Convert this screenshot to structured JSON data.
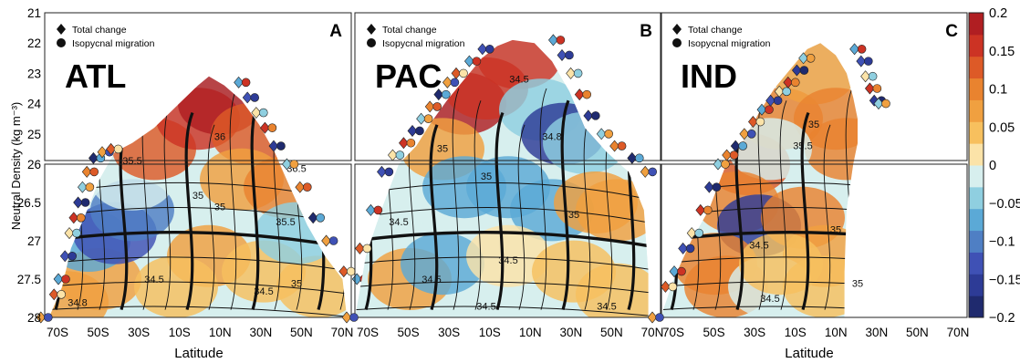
{
  "chart_data": {
    "type": "heatmap",
    "ylabel": "Neutral Density (kg m⁻³)",
    "xlabel": "Latitude",
    "x_ticks": [
      "70S",
      "50S",
      "30S",
      "10S",
      "10N",
      "30N",
      "50N",
      "70N"
    ],
    "y_ticks": [
      "21",
      "22",
      "23",
      "24",
      "25",
      "26",
      "26.5",
      "27",
      "27.5",
      "28"
    ],
    "xlim": [
      -70,
      70
    ],
    "y_upper_range": [
      21,
      26
    ],
    "y_lower_range": [
      26,
      28
    ],
    "legend": {
      "diamond_label": "Total change",
      "circle_label": "Isopycnal migration"
    },
    "colorbar": {
      "ticks": [
        "0.2",
        "0.15",
        "0.1",
        "0.05",
        "0",
        "−0.05",
        "−0.1",
        "−0.15",
        "−0.2"
      ],
      "range": [
        -0.2,
        0.2
      ],
      "colors": [
        "#1f2a6e",
        "#2d3b96",
        "#3f51b5",
        "#4f7fc4",
        "#5ba9d6",
        "#8fcfe0",
        "#d7efee",
        "#fbe3a8",
        "#f7c05e",
        "#f0a040",
        "#e9832f",
        "#dd5a27",
        "#cc3324",
        "#b01e22"
      ]
    },
    "panels": [
      {
        "letter": "A",
        "basin": "ATL",
        "salinity_labels": [
          "35.5",
          "36",
          "35",
          "36.5",
          "35",
          "35.5",
          "34.5",
          "34.5",
          "35",
          "34.8"
        ],
        "field": [
          {
            "lat": -60,
            "d": 27.8,
            "v": 0.06
          },
          {
            "lat": -45,
            "d": 27.5,
            "v": 0.08
          },
          {
            "lat": -50,
            "d": 27.0,
            "v": -0.06
          },
          {
            "lat": -38,
            "d": 26.9,
            "v": -0.13
          },
          {
            "lat": -30,
            "d": 26.6,
            "v": -0.09
          },
          {
            "lat": -30,
            "d": 26.2,
            "v": -0.02
          },
          {
            "lat": -20,
            "d": 25.5,
            "v": 0.12
          },
          {
            "lat": 0,
            "d": 24.5,
            "v": 0.17
          },
          {
            "lat": 10,
            "d": 24.0,
            "v": 0.19
          },
          {
            "lat": 25,
            "d": 25.0,
            "v": 0.14
          },
          {
            "lat": 20,
            "d": 26.2,
            "v": 0.08
          },
          {
            "lat": 40,
            "d": 26.3,
            "v": 0.09
          },
          {
            "lat": 5,
            "d": 27.2,
            "v": 0.06
          },
          {
            "lat": 30,
            "d": 27.4,
            "v": 0.05
          },
          {
            "lat": -10,
            "d": 27.6,
            "v": 0.05
          },
          {
            "lat": 55,
            "d": 27.6,
            "v": 0.04
          },
          {
            "lat": 45,
            "d": 26.9,
            "v": -0.03
          }
        ]
      },
      {
        "letter": "B",
        "basin": "PAC",
        "salinity_labels": [
          "34.5",
          "35",
          "34.8",
          "35",
          "35",
          "34.5",
          "34.5",
          "34.5",
          "34.5",
          "34.5"
        ],
        "field": [
          {
            "lat": -20,
            "d": 24.0,
            "v": 0.19
          },
          {
            "lat": -10,
            "d": 23.5,
            "v": 0.16
          },
          {
            "lat": 5,
            "d": 22.5,
            "v": 0.15
          },
          {
            "lat": 15,
            "d": 24.2,
            "v": -0.03
          },
          {
            "lat": 25,
            "d": 25.0,
            "v": -0.17
          },
          {
            "lat": 35,
            "d": 25.3,
            "v": -0.04
          },
          {
            "lat": -30,
            "d": 25.5,
            "v": 0.06
          },
          {
            "lat": -20,
            "d": 26.3,
            "v": -0.07
          },
          {
            "lat": 0,
            "d": 26.3,
            "v": -0.08
          },
          {
            "lat": 20,
            "d": 26.6,
            "v": -0.06
          },
          {
            "lat": 40,
            "d": 26.5,
            "v": 0.06
          },
          {
            "lat": 50,
            "d": 26.6,
            "v": 0.08
          },
          {
            "lat": -50,
            "d": 27.1,
            "v": -0.02
          },
          {
            "lat": -45,
            "d": 27.5,
            "v": 0.07
          },
          {
            "lat": -30,
            "d": 27.3,
            "v": -0.06
          },
          {
            "lat": 0,
            "d": 27.2,
            "v": 0.01
          },
          {
            "lat": 30,
            "d": 27.4,
            "v": 0.05
          },
          {
            "lat": 50,
            "d": 27.7,
            "v": 0.03
          }
        ]
      },
      {
        "letter": "C",
        "basin": "IND",
        "salinity_labels": [
          "35",
          "35.5",
          "35",
          "34.5",
          "34.5",
          "35"
        ],
        "field": [
          {
            "lat": -30,
            "d": 26.0,
            "v": 0.12
          },
          {
            "lat": -15,
            "d": 24.5,
            "v": 0.09
          },
          {
            "lat": 0,
            "d": 23.0,
            "v": 0.08
          },
          {
            "lat": 10,
            "d": 24.5,
            "v": 0.09
          },
          {
            "lat": 15,
            "d": 25.5,
            "v": 0.1
          },
          {
            "lat": -20,
            "d": 25.5,
            "v": -0.02
          },
          {
            "lat": -35,
            "d": 26.5,
            "v": 0.11
          },
          {
            "lat": -25,
            "d": 26.8,
            "v": -0.15
          },
          {
            "lat": -5,
            "d": 26.7,
            "v": 0.09
          },
          {
            "lat": 5,
            "d": 27.2,
            "v": 0.07
          },
          {
            "lat": -45,
            "d": 27.3,
            "v": 0.11
          },
          {
            "lat": -40,
            "d": 27.6,
            "v": 0.1
          },
          {
            "lat": -20,
            "d": 27.6,
            "v": -0.02
          },
          {
            "lat": 5,
            "d": 27.6,
            "v": 0.03
          },
          {
            "lat": -15,
            "d": 27.3,
            "v": 0.04
          }
        ]
      }
    ]
  }
}
